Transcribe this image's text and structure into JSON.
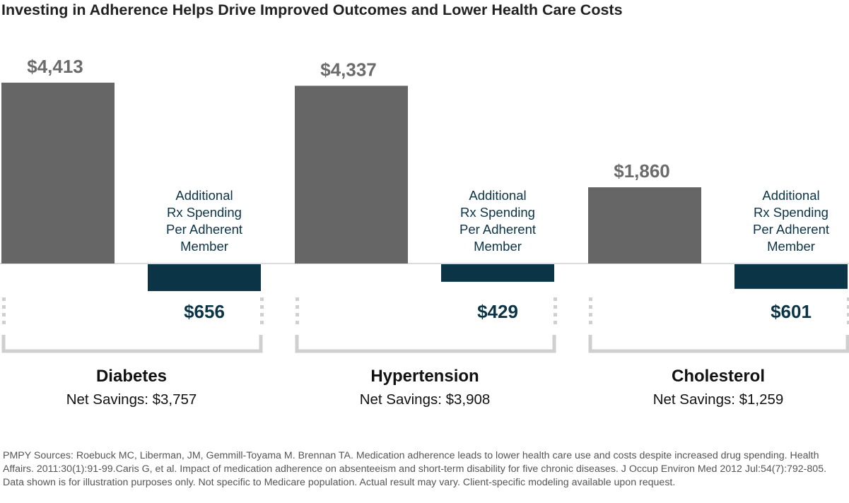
{
  "title": "Investing in Adherence Helps Drive Improved Outcomes and Lower Health Care Costs",
  "chart_data": {
    "type": "bar",
    "categories": [
      "Diabetes",
      "Hypertension",
      "Cholesterol"
    ],
    "series": [
      {
        "values": [
          4413,
          4337,
          1860
        ],
        "labels": [
          "$4,413",
          "$4,337",
          "$1,860"
        ],
        "color": "#666666"
      },
      {
        "name": "Additional Rx Spending Per Adherent Member",
        "values": [
          -656,
          -429,
          -601
        ],
        "labels": [
          "$656",
          "$429",
          "$601"
        ],
        "color": "#0b3547"
      }
    ],
    "annotation_lines": [
      "Additional",
      "Rx Spending",
      "Per Adherent",
      "Member"
    ],
    "net_savings": [
      "Net Savings: $3,757",
      "Net Savings: $3,908",
      "Net Savings: $1,259"
    ],
    "grid": false
  },
  "footer": "PMPY Sources: Roebuck MC, Liberman, JM, Gemmill-Toyama M. Brennan TA. Medication adherence leads to lower health care use and costs despite increased drug spending. Health Affairs. 2011:30(1):91-99.Caris G, et al. Impact of medication adherence on absenteeism and short-term disability for five chronic diseases. J Occup Environ Med 2012 Jul:54(7):792-805. Data shown is for illustration purposes only. Not specific to Medicare population. Actual result may vary. Client-specific modeling available upon request."
}
